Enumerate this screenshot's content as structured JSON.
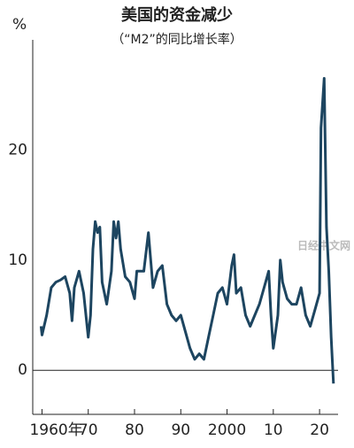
{
  "chart_data": {
    "type": "line",
    "title": "美国的资金减少",
    "subtitle": "（“M2”的同比增长率）",
    "y_unit": "%",
    "watermark": "日经中文网",
    "series": [
      {
        "name": "M2",
        "color": "#1d4560",
        "x": [
          1959.8,
          1960,
          1961,
          1962,
          1963,
          1964,
          1965,
          1966,
          1966.5,
          1967,
          1968,
          1969,
          1970,
          1970.5,
          1971,
          1971.5,
          1972,
          1972.5,
          1973,
          1974,
          1975,
          1975.5,
          1976,
          1976.5,
          1977,
          1978,
          1979,
          1980,
          1980.5,
          1981,
          1982,
          1983,
          1983.5,
          1984,
          1985,
          1986,
          1987,
          1988,
          1989,
          1990,
          1991,
          1992,
          1993,
          1994,
          1995,
          1996,
          1997,
          1998,
          1999,
          2000,
          2001,
          2001.5,
          2002,
          2003,
          2004,
          2005,
          2006,
          2007,
          2008,
          2009,
          2009.5,
          2010,
          2011,
          2011.5,
          2012,
          2013,
          2014,
          2015,
          2016,
          2017,
          2018,
          2019,
          2020,
          2020.3,
          2021,
          2021.5,
          2022,
          2022.5,
          2023
        ],
        "values": [
          4,
          3.2,
          5,
          7.5,
          8,
          8.2,
          8.5,
          7,
          4.5,
          7.5,
          9,
          7,
          3,
          5,
          11,
          13.5,
          12.5,
          13,
          8,
          6,
          9,
          13.5,
          12,
          13.5,
          11,
          8.5,
          8,
          6.5,
          9,
          9,
          9,
          12.5,
          10,
          7.5,
          9,
          9.5,
          6,
          5,
          4.5,
          5,
          3.5,
          2,
          1,
          1.5,
          1,
          3,
          5,
          7,
          7.5,
          6,
          9.5,
          10.5,
          7,
          7.5,
          5,
          4,
          5,
          6,
          7.5,
          9,
          5,
          2,
          5,
          10,
          8,
          6.5,
          6,
          6,
          7.5,
          5,
          4,
          5.5,
          7,
          22,
          26.5,
          13,
          9,
          3,
          -1.2
        ]
      }
    ],
    "xlim": [
      1958,
      2024
    ],
    "xticks": [
      {
        "value": 1960,
        "label": "1960年"
      },
      {
        "value": 1970,
        "label": "70"
      },
      {
        "value": 1980,
        "label": "80"
      },
      {
        "value": 1990,
        "label": "90"
      },
      2000,
      {
        "value": 2010,
        "label": "10"
      },
      {
        "value": 2020,
        "label": "20"
      }
    ],
    "ylim": [
      -4,
      30
    ],
    "yticks": [
      0,
      10,
      20
    ]
  }
}
